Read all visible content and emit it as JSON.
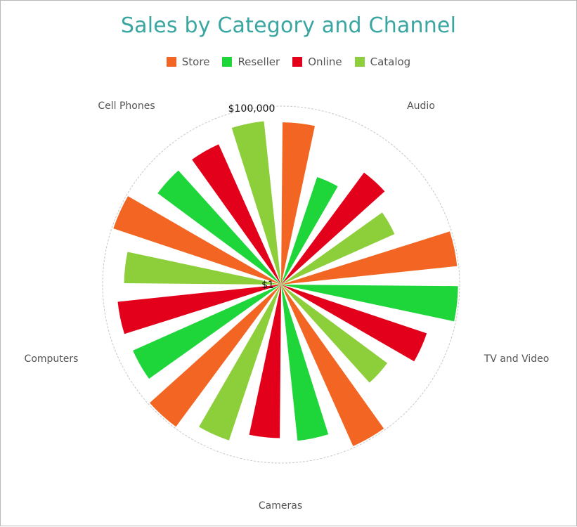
{
  "chart_data": {
    "type": "bar",
    "polar": true,
    "title": "Sales by Category and Channel",
    "categories": [
      "Audio",
      "TV and Video",
      "Cameras",
      "Computers",
      "Cell Phones"
    ],
    "series": [
      {
        "name": "Store",
        "color": "#f26522",
        "values": [
          35000,
          90000,
          90000,
          90000,
          90000
        ]
      },
      {
        "name": "Reseller",
        "color": "#1fd63a",
        "values": [
          1500,
          90000,
          25000,
          35000,
          20000
        ]
      },
      {
        "name": "Online",
        "color": "#e3001b",
        "values": [
          8000,
          20000,
          20000,
          40000,
          20000
        ]
      },
      {
        "name": "Catalog",
        "color": "#8dcf3a",
        "values": [
          3000,
          5000,
          40000,
          25000,
          40000
        ]
      }
    ],
    "value_axis": {
      "scale": "log",
      "min_label": "$1",
      "max_label": "$100,000",
      "range": [
        1,
        100000
      ]
    },
    "legend_position": "top-center",
    "grid": true
  }
}
